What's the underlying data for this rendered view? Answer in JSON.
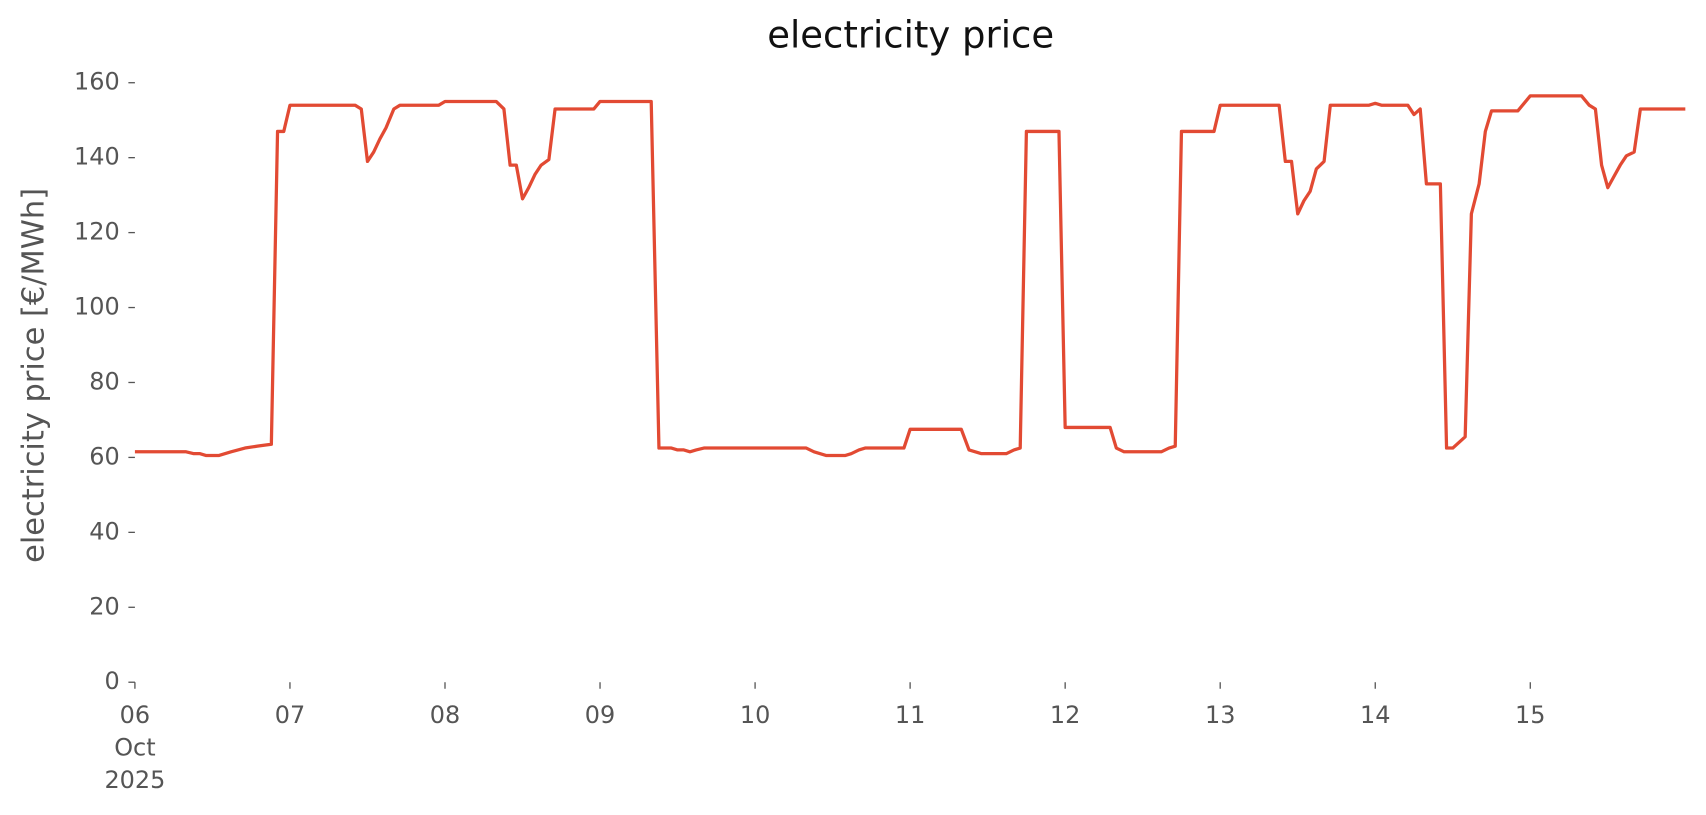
{
  "chart_data": {
    "type": "line",
    "title": "electricity price",
    "y_label": "electricity price [€/MWh]",
    "color": "#e24a33",
    "x": [
      6.0,
      6.25,
      6.33,
      6.38,
      6.42,
      6.46,
      6.54,
      6.62,
      6.71,
      6.79,
      6.88,
      6.92,
      6.96,
      7.0,
      7.42,
      7.46,
      7.5,
      7.54,
      7.58,
      7.62,
      7.67,
      7.71,
      7.96,
      8.0,
      8.33,
      8.38,
      8.42,
      8.46,
      8.5,
      8.54,
      8.58,
      8.62,
      8.67,
      8.71,
      8.96,
      9.0,
      9.33,
      9.38,
      9.46,
      9.5,
      9.54,
      9.58,
      9.62,
      9.67,
      10.33,
      10.38,
      10.42,
      10.46,
      10.58,
      10.62,
      10.67,
      10.71,
      10.96,
      11.0,
      11.33,
      11.38,
      11.46,
      11.62,
      11.67,
      11.71,
      11.75,
      11.96,
      12.0,
      12.29,
      12.33,
      12.38,
      12.62,
      12.67,
      12.71,
      12.75,
      12.96,
      13.0,
      13.38,
      13.42,
      13.46,
      13.5,
      13.54,
      13.58,
      13.62,
      13.67,
      13.71,
      13.96,
      14.0,
      14.04,
      14.21,
      14.25,
      14.29,
      14.33,
      14.42,
      14.46,
      14.5,
      14.54,
      14.58,
      14.62,
      14.67,
      14.71,
      14.75,
      14.92,
      15.0,
      15.33,
      15.38,
      15.42,
      15.46,
      15.5,
      15.54,
      15.58,
      15.62,
      15.67,
      15.71,
      15.96,
      16.0
    ],
    "values": [
      61.5,
      61.5,
      61.5,
      61,
      61,
      60.5,
      60.5,
      61.5,
      62.5,
      63,
      63.5,
      147,
      147,
      154,
      154,
      153,
      139,
      141.5,
      145,
      148,
      153,
      154,
      154,
      155,
      155,
      153,
      138,
      138,
      129,
      132,
      135.5,
      138,
      139.5,
      153,
      153,
      155,
      155,
      62.5,
      62.5,
      62,
      62,
      61.5,
      62,
      62.5,
      62.5,
      61.5,
      61,
      60.5,
      60.5,
      61,
      62,
      62.5,
      62.5,
      67.5,
      67.5,
      62,
      61,
      61,
      62,
      62.5,
      147,
      147,
      68,
      68,
      62.5,
      61.5,
      61.5,
      62.5,
      63,
      147,
      147,
      154,
      154,
      139,
      139,
      125,
      128.5,
      131,
      137,
      139,
      154,
      154,
      154.5,
      154,
      154,
      151.5,
      153,
      133,
      133,
      62.5,
      62.5,
      64,
      65.5,
      125,
      133,
      147,
      152.5,
      152.5,
      156.5,
      156.5,
      154,
      153,
      138,
      132,
      135,
      138,
      140.5,
      141.5,
      153,
      153,
      153
    ],
    "xlim": [
      6,
      16
    ],
    "xticks": [
      {
        "value": 6,
        "label": "06"
      },
      {
        "value": 7,
        "label": "07"
      },
      {
        "value": 8,
        "label": "08"
      },
      {
        "value": 9,
        "label": "09"
      },
      10,
      11,
      12,
      13,
      14,
      15
    ],
    "x_offset_label": [
      "Oct",
      "2025"
    ],
    "ylim": [
      0,
      160
    ],
    "yticks": [
      0,
      20,
      40,
      60,
      80,
      100,
      120,
      140,
      160
    ],
    "grid": false
  }
}
